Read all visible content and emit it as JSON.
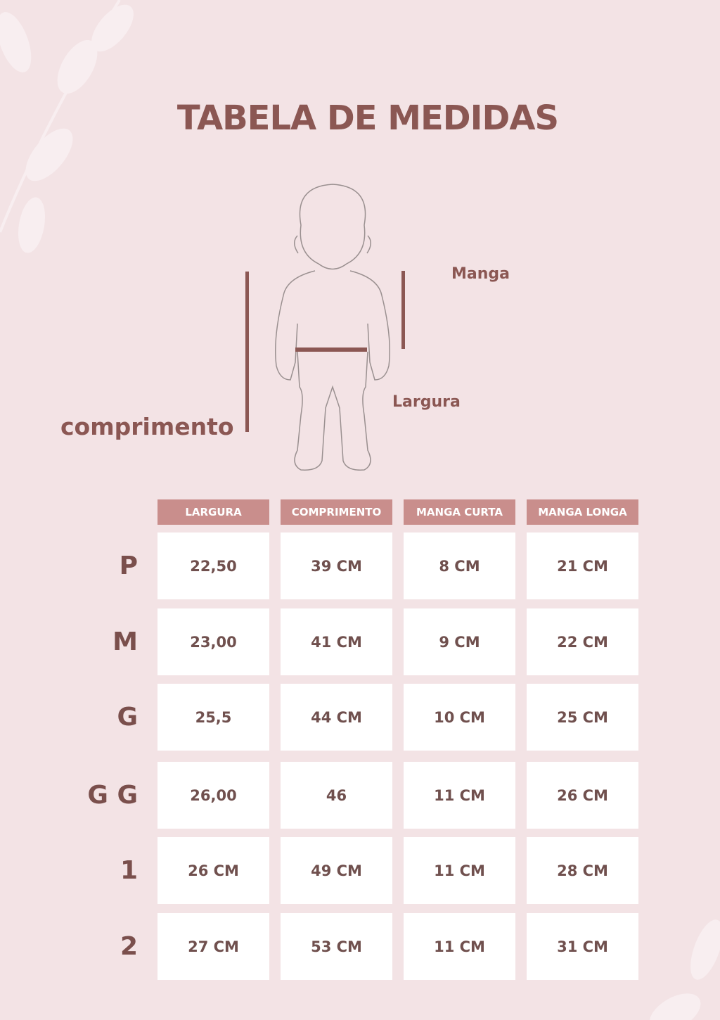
{
  "title": "TABELA DE MEDIDAS",
  "diagram": {
    "manga": "Manga",
    "largura": "Largura",
    "comprimento": "comprimento"
  },
  "colors": {
    "background": "#f3e3e5",
    "accent": "#8b5753",
    "header": "#c98e8c",
    "cell": "#ffffff"
  },
  "table": {
    "headers": [
      "LARGURA",
      "COMPRIMENTO",
      "MANGA CURTA",
      "MANGA LONGA"
    ],
    "rows": [
      {
        "size": "P",
        "values": [
          "22,50",
          "39 CM",
          "8 CM",
          "21 CM"
        ]
      },
      {
        "size": "M",
        "values": [
          "23,00",
          "41 CM",
          "9 CM",
          "22 CM"
        ]
      },
      {
        "size": "G",
        "values": [
          "25,5",
          "44 CM",
          "10 CM",
          "25 CM"
        ]
      },
      {
        "size": "G G",
        "values": [
          "26,00",
          "46",
          "11 CM",
          "26 CM"
        ]
      },
      {
        "size": "1",
        "values": [
          "26 CM",
          "49 CM",
          "11 CM",
          "28 CM"
        ]
      },
      {
        "size": "2",
        "values": [
          "27 CM",
          "53 CM",
          "11 CM",
          "31 CM"
        ]
      }
    ]
  }
}
